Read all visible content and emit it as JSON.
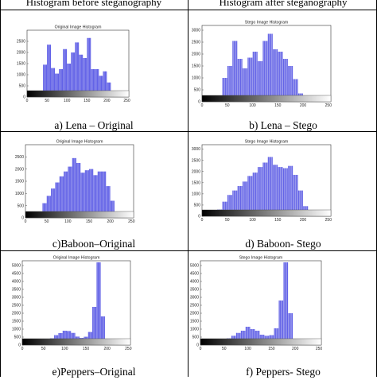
{
  "headers": {
    "left": "Histogram before steganography",
    "right": "Histogram after steganography"
  },
  "panels": [
    {
      "caption": "a)   Lena – Original",
      "plot_title": "Original Image Histogram"
    },
    {
      "caption": "b) Lena – Stego",
      "plot_title": "Stego Image Histogram"
    },
    {
      "caption": "c)Baboon–Original",
      "plot_title": "Original Image Histogram"
    },
    {
      "caption": "d) Baboon- Stego",
      "plot_title": "Stego Image Histogram"
    },
    {
      "caption": "e)Peppers–Original",
      "plot_title": "Original Image Histogram"
    },
    {
      "caption": "f) Peppers- Stego",
      "plot_title": "Stego Image Histogram"
    }
  ],
  "colors": {
    "bar": "#5a5ae6",
    "bar_light": "#b4b4f0",
    "border": "#333333"
  },
  "chart_data": [
    {
      "type": "bar",
      "title": "Original Image Histogram",
      "x_ticks": [
        0,
        50,
        100,
        150,
        200,
        250
      ],
      "xlim": [
        0,
        255
      ],
      "ylim": [
        0,
        3000
      ],
      "y_ticks": [
        0,
        500,
        1000,
        1500,
        2000,
        2500
      ],
      "x": [
        25,
        35,
        45,
        55,
        65,
        75,
        85,
        95,
        105,
        115,
        125,
        135,
        145,
        155,
        165,
        175,
        185,
        195,
        205,
        215,
        225
      ],
      "values": [
        0,
        120,
        1450,
        2350,
        1300,
        1050,
        1250,
        2150,
        1500,
        2000,
        2450,
        1900,
        1750,
        2650,
        1250,
        1250,
        950,
        1150,
        650,
        60,
        0
      ]
    },
    {
      "type": "bar",
      "title": "Stego Image Histogram",
      "x_ticks": [
        0,
        50,
        100,
        150,
        200,
        250
      ],
      "xlim": [
        0,
        255
      ],
      "ylim": [
        0,
        3200
      ],
      "y_ticks": [
        0,
        500,
        1000,
        1500,
        2000,
        2500,
        3000
      ],
      "x": [
        25,
        35,
        45,
        55,
        65,
        75,
        85,
        95,
        105,
        115,
        125,
        135,
        145,
        155,
        165,
        175,
        185,
        195,
        205,
        215,
        225
      ],
      "values": [
        0,
        120,
        1000,
        1500,
        2550,
        1800,
        1400,
        1850,
        2100,
        1700,
        2550,
        2850,
        2200,
        2100,
        1800,
        1500,
        950,
        350,
        80,
        30,
        0
      ]
    },
    {
      "type": "bar",
      "title": "Original Image Histogram",
      "x_ticks": [
        0,
        50,
        100,
        150,
        200,
        250
      ],
      "xlim": [
        0,
        255
      ],
      "ylim": [
        0,
        3000
      ],
      "y_ticks": [
        0,
        500,
        1000,
        1500,
        2000,
        2500
      ],
      "x": [
        15,
        25,
        35,
        45,
        55,
        65,
        75,
        85,
        95,
        105,
        115,
        125,
        135,
        145,
        155,
        165,
        175,
        185,
        195,
        205,
        215,
        225,
        235
      ],
      "values": [
        0,
        60,
        250,
        600,
        900,
        1200,
        1450,
        1700,
        1900,
        2100,
        2450,
        2250,
        1850,
        1950,
        2000,
        1750,
        1900,
        1900,
        1300,
        700,
        250,
        50,
        0
      ]
    },
    {
      "type": "bar",
      "title": "Stego Image Histogram",
      "x_ticks": [
        0,
        50,
        100,
        150,
        200,
        250
      ],
      "xlim": [
        0,
        255
      ],
      "ylim": [
        0,
        3200
      ],
      "y_ticks": [
        0,
        500,
        1000,
        1500,
        2000,
        2500,
        3000
      ],
      "x": [
        15,
        25,
        35,
        45,
        55,
        65,
        75,
        85,
        95,
        105,
        115,
        125,
        135,
        145,
        155,
        165,
        175,
        185,
        195,
        205,
        215,
        225,
        235
      ],
      "values": [
        0,
        60,
        300,
        650,
        950,
        1150,
        1350,
        1550,
        1800,
        1950,
        2200,
        2400,
        2650,
        2300,
        2200,
        2150,
        2250,
        1850,
        1150,
        450,
        120,
        20,
        0
      ]
    },
    {
      "type": "bar",
      "title": "Original Image Histogram",
      "x_ticks": [
        0,
        50,
        100,
        150,
        200,
        250
      ],
      "xlim": [
        0,
        255
      ],
      "ylim": [
        0,
        5300
      ],
      "y_ticks": [
        0,
        500,
        1000,
        1500,
        2000,
        2500,
        3000,
        3500,
        4000,
        4500,
        5000
      ],
      "x": [
        10,
        20,
        30,
        40,
        50,
        60,
        70,
        80,
        90,
        100,
        110,
        120,
        130,
        140,
        150,
        160,
        170,
        180,
        190,
        200,
        210
      ],
      "values": [
        0,
        60,
        120,
        230,
        280,
        330,
        420,
        620,
        750,
        900,
        880,
        760,
        530,
        450,
        520,
        820,
        2400,
        5200,
        1800,
        150,
        0
      ]
    },
    {
      "type": "bar",
      "title": "Stego Image Histogram",
      "x_ticks": [
        0,
        50,
        100,
        150,
        200,
        250
      ],
      "xlim": [
        0,
        255
      ],
      "ylim": [
        0,
        5300
      ],
      "y_ticks": [
        0,
        500,
        1000,
        1500,
        2000,
        2500,
        3000,
        3500,
        4000,
        4500,
        5000
      ],
      "x": [
        10,
        20,
        30,
        40,
        50,
        60,
        70,
        80,
        90,
        100,
        110,
        120,
        130,
        140,
        150,
        160,
        170,
        180,
        190,
        200,
        210
      ],
      "values": [
        0,
        50,
        150,
        350,
        380,
        420,
        580,
        760,
        900,
        1150,
        1000,
        900,
        650,
        580,
        620,
        1050,
        2800,
        5200,
        2000,
        150,
        0
      ]
    }
  ]
}
